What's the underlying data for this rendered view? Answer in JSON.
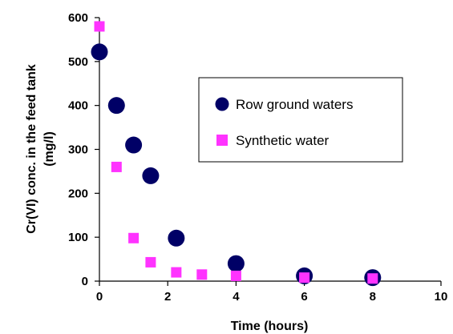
{
  "chart_data": {
    "type": "scatter",
    "title": "",
    "xlabel": "Time (hours)",
    "ylabel_line1": "Cr(VI) conc. in the feed tank",
    "ylabel_line2": "(mg/l)",
    "xlim": [
      0,
      10
    ],
    "ylim": [
      0,
      600
    ],
    "x_ticks": [
      0,
      2,
      4,
      6,
      8,
      10
    ],
    "y_ticks": [
      0,
      100,
      200,
      300,
      400,
      500,
      600
    ],
    "grid": false,
    "legend_position": "right-center",
    "series": [
      {
        "name": "Row ground waters",
        "marker": "circle",
        "color": "#000066",
        "points": [
          {
            "x": 0,
            "y": 522
          },
          {
            "x": 0.5,
            "y": 400
          },
          {
            "x": 1,
            "y": 310
          },
          {
            "x": 1.5,
            "y": 240
          },
          {
            "x": 2.25,
            "y": 98
          },
          {
            "x": 4,
            "y": 40
          },
          {
            "x": 6,
            "y": 12
          },
          {
            "x": 8,
            "y": 8
          }
        ]
      },
      {
        "name": "Synthetic water",
        "marker": "square",
        "color": "#ff33ff",
        "points": [
          {
            "x": 0,
            "y": 580
          },
          {
            "x": 0.5,
            "y": 260
          },
          {
            "x": 1,
            "y": 98
          },
          {
            "x": 1.5,
            "y": 43
          },
          {
            "x": 2.25,
            "y": 20
          },
          {
            "x": 3,
            "y": 15
          },
          {
            "x": 4,
            "y": 12
          },
          {
            "x": 6,
            "y": 8
          },
          {
            "x": 8,
            "y": 6
          }
        ]
      }
    ]
  }
}
